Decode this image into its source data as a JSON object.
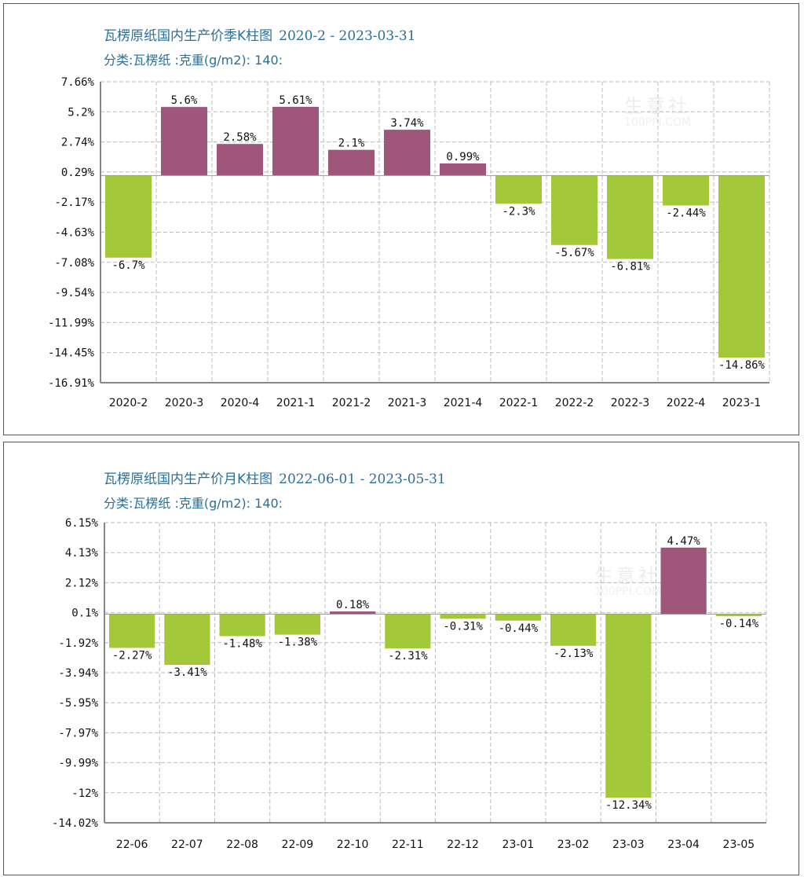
{
  "watermark": {
    "cn": "生意社",
    "en": "100PPI.COM"
  },
  "chart_data": [
    {
      "type": "bar",
      "title": "瓦楞原纸国内生产价季K柱图",
      "range": "2020-2 - 2023-03-31",
      "subtitle": "分类:瓦楞纸 :克重(g/m2): 140:",
      "categories": [
        "2020-2",
        "2020-3",
        "2020-4",
        "2021-1",
        "2021-2",
        "2021-3",
        "2021-4",
        "2022-1",
        "2022-2",
        "2022-3",
        "2022-4",
        "2023-1"
      ],
      "values": [
        -6.7,
        5.6,
        2.58,
        5.61,
        2.1,
        3.74,
        0.99,
        -2.3,
        -5.67,
        -6.81,
        -2.44,
        -14.86
      ],
      "value_labels": [
        "-6.7%",
        "5.6%",
        "2.58%",
        "5.61%",
        "2.1%",
        "3.74%",
        "0.99%",
        "-2.3%",
        "-5.67%",
        "-6.81%",
        "-2.44%",
        "-14.86%"
      ],
      "yticks": [
        "7.66%",
        "5.2%",
        "2.74%",
        "0.29%",
        "-2.17%",
        "-4.63%",
        "-7.08%",
        "-9.54%",
        "-11.99%",
        "-14.45%",
        "-16.91%"
      ],
      "ylim": [
        -16.91,
        7.66
      ],
      "positive_color": "#a0557a",
      "negative_color": "#a3c93b",
      "grid": true
    },
    {
      "type": "bar",
      "title": "瓦楞原纸国内生产价月K柱图",
      "range": "2022-06-01 - 2023-05-31",
      "subtitle": "分类:瓦楞纸 :克重(g/m2): 140:",
      "categories": [
        "22-06",
        "22-07",
        "22-08",
        "22-09",
        "22-10",
        "22-11",
        "22-12",
        "23-01",
        "23-02",
        "23-03",
        "23-04",
        "23-05"
      ],
      "values": [
        -2.27,
        -3.41,
        -1.48,
        -1.38,
        0.18,
        -2.31,
        -0.31,
        -0.44,
        -2.13,
        -12.34,
        4.47,
        -0.14
      ],
      "value_labels": [
        "-2.27%",
        "-3.41%",
        "-1.48%",
        "-1.38%",
        "0.18%",
        "-2.31%",
        "-0.31%",
        "-0.44%",
        "-2.13%",
        "-12.34%",
        "4.47%",
        "-0.14%"
      ],
      "yticks": [
        "6.15%",
        "4.13%",
        "2.12%",
        "0.1%",
        "-1.92%",
        "-3.94%",
        "-5.95%",
        "-7.97%",
        "-9.99%",
        "-12%",
        "-14.02%"
      ],
      "ylim": [
        -14.02,
        6.15
      ],
      "positive_color": "#a0557a",
      "negative_color": "#a3c93b",
      "grid": true
    }
  ]
}
